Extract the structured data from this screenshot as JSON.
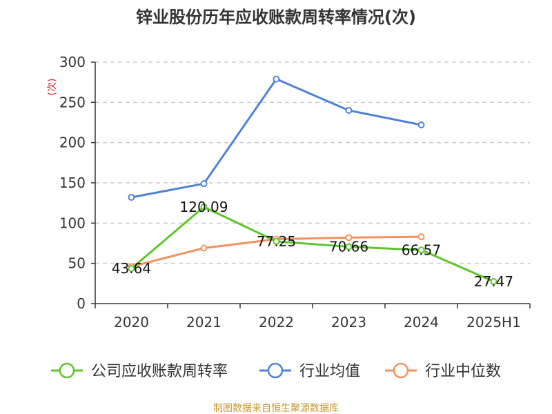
{
  "chart_data": {
    "type": "line",
    "title": "锌业股份历年应收账款周转率情况(次)",
    "ylabel": "(次)",
    "categories": [
      "2020",
      "2021",
      "2022",
      "2023",
      "2024",
      "2025H1"
    ],
    "ylim": [
      0,
      300
    ],
    "yticks": [
      0,
      50,
      100,
      150,
      200,
      250,
      300
    ],
    "grid": true,
    "legend_position": "bottom",
    "series": [
      {
        "name": "公司应收账款周转率",
        "color": "#5cc62a",
        "values": [
          43.64,
          120.09,
          77.25,
          70.66,
          66.57,
          27.47
        ],
        "labels": true
      },
      {
        "name": "行业均值",
        "color": "#4f81d9",
        "values": [
          132,
          149,
          279,
          240,
          222,
          null
        ],
        "labels": false
      },
      {
        "name": "行业中位数",
        "color": "#f4915e",
        "values": [
          46,
          69,
          80,
          82,
          83,
          null
        ],
        "labels": false
      }
    ]
  },
  "footer": {
    "source": "制图数据来自恒生聚源数据库"
  }
}
